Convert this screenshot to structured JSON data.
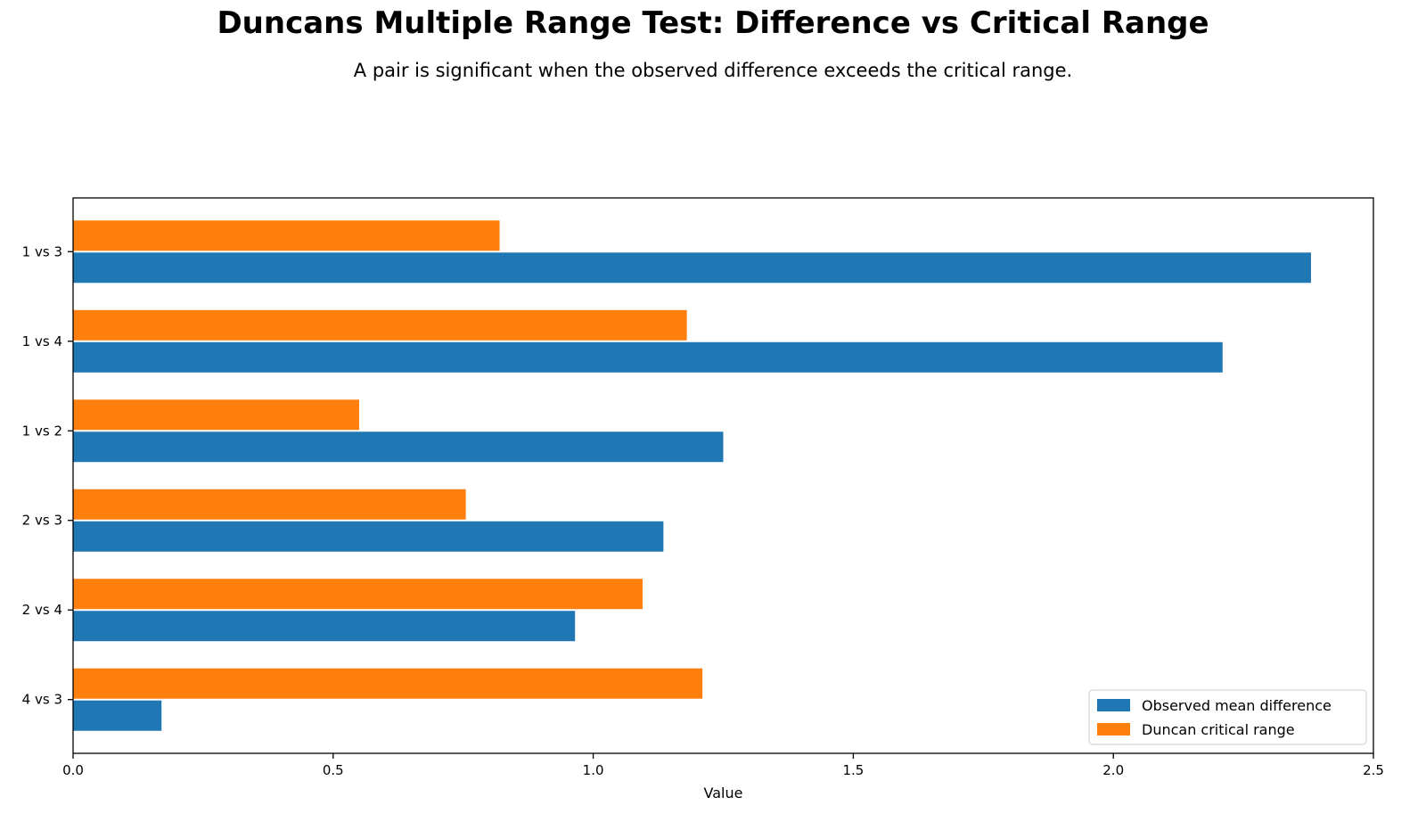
{
  "chart_data": {
    "type": "bar",
    "orientation": "horizontal",
    "title": "Duncans Multiple Range Test: Difference vs Critical Range",
    "subtitle": "A pair is significant when the observed difference exceeds the critical range.",
    "xlabel": "Value",
    "ylabel": "",
    "xlim": [
      0,
      2.5
    ],
    "x_ticks": [
      "0.0",
      "0.5",
      "1.0",
      "1.5",
      "2.0",
      "2.5"
    ],
    "categories": [
      "1 vs 3",
      "1 vs 4",
      "1 vs 2",
      "2 vs 3",
      "2 vs 4",
      "4 vs 3"
    ],
    "series": [
      {
        "name": "Observed mean difference",
        "color": "#1f77b4",
        "values": [
          2.38,
          2.21,
          1.25,
          1.135,
          0.965,
          0.17
        ]
      },
      {
        "name": "Duncan critical range",
        "color": "#ff7f0e",
        "values": [
          0.82,
          1.18,
          0.55,
          0.755,
          1.095,
          1.21
        ]
      }
    ],
    "grid": false,
    "legend_position": "bottom-right"
  }
}
